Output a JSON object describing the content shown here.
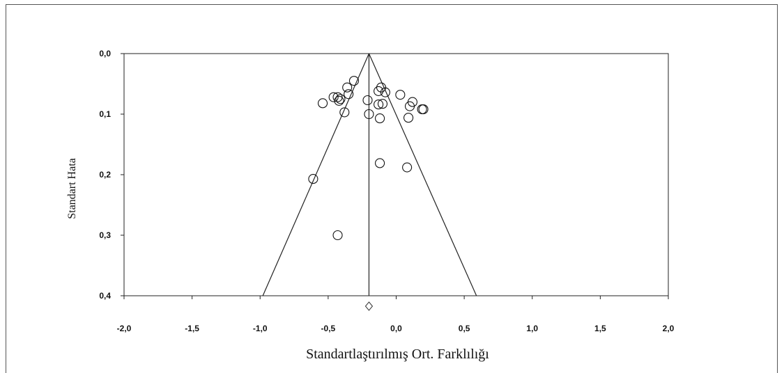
{
  "chart_data": {
    "type": "scatter",
    "subtype": "funnel-plot",
    "title": "",
    "xlabel": "Standartlaştırılmış Ort. Farklılığı",
    "ylabel": "Standart Hata",
    "xlim": [
      -2.0,
      2.0
    ],
    "ylim": [
      0.0,
      0.4
    ],
    "y_inverted": true,
    "x_tick_labels": [
      "-2,0",
      "-1,5",
      "-1,0",
      "-0,5",
      "0,0",
      "0,5",
      "1,0",
      "1,5",
      "2,0"
    ],
    "x_tick_values": [
      -2.0,
      -1.5,
      -1.0,
      -0.5,
      0.0,
      0.5,
      1.0,
      1.5,
      2.0
    ],
    "y_tick_labels": [
      "0,0",
      "0,1",
      "0,2",
      "0,3",
      "0,4"
    ],
    "y_tick_values": [
      0.0,
      0.1,
      0.2,
      0.3,
      0.4
    ],
    "grid": false,
    "legend": "none",
    "pooled_effect": -0.2,
    "funnel_bottom": [
      -0.98,
      0.59
    ],
    "summary_diamond": {
      "x": -0.2
    },
    "points": [
      {
        "x": -0.54,
        "y": 0.082
      },
      {
        "x": -0.46,
        "y": 0.072
      },
      {
        "x": -0.43,
        "y": 0.072
      },
      {
        "x": -0.42,
        "y": 0.078
      },
      {
        "x": -0.41,
        "y": 0.075
      },
      {
        "x": -0.43,
        "y": 0.3
      },
      {
        "x": -0.38,
        "y": 0.097
      },
      {
        "x": -0.36,
        "y": 0.056
      },
      {
        "x": -0.35,
        "y": 0.067
      },
      {
        "x": -0.31,
        "y": 0.045
      },
      {
        "x": -0.61,
        "y": 0.207
      },
      {
        "x": -0.21,
        "y": 0.077
      },
      {
        "x": -0.2,
        "y": 0.1
      },
      {
        "x": -0.13,
        "y": 0.062
      },
      {
        "x": -0.11,
        "y": 0.056
      },
      {
        "x": -0.08,
        "y": 0.064
      },
      {
        "x": -0.13,
        "y": 0.084
      },
      {
        "x": -0.1,
        "y": 0.083
      },
      {
        "x": -0.12,
        "y": 0.107
      },
      {
        "x": -0.12,
        "y": 0.181
      },
      {
        "x": 0.03,
        "y": 0.068
      },
      {
        "x": 0.12,
        "y": 0.08
      },
      {
        "x": 0.1,
        "y": 0.087
      },
      {
        "x": 0.19,
        "y": 0.092
      },
      {
        "x": 0.2,
        "y": 0.092
      },
      {
        "x": 0.09,
        "y": 0.106
      },
      {
        "x": 0.08,
        "y": 0.188
      }
    ]
  }
}
